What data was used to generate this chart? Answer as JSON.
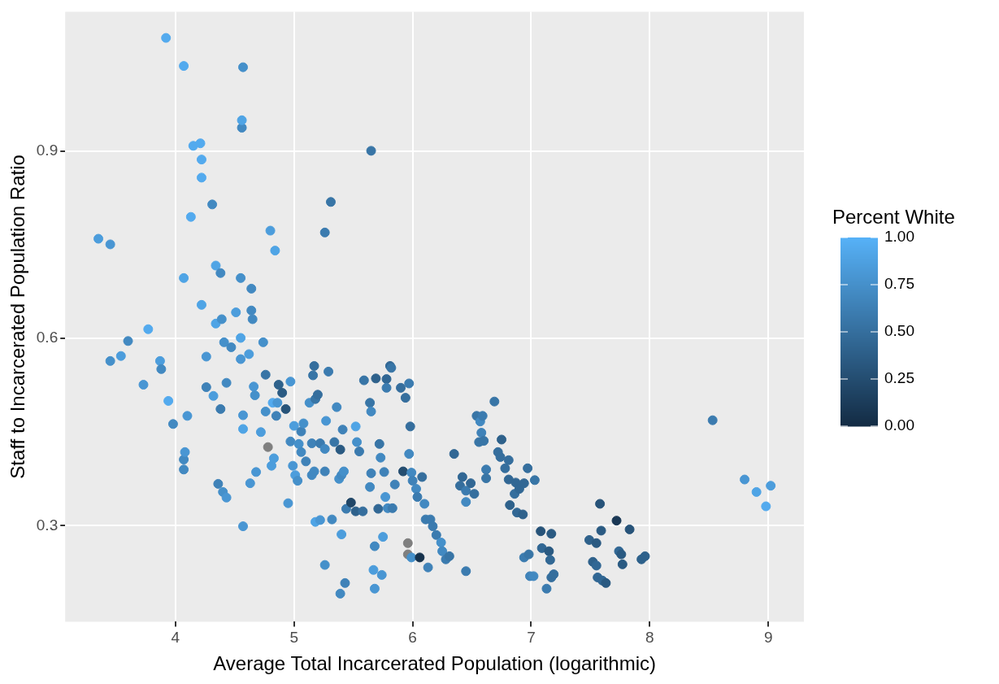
{
  "chart_data": {
    "type": "scatter",
    "xlabel": "Average Total Incarcerated Population (logarithmic)",
    "ylabel": "Staff to Incarcerated Population Ratio",
    "legend_title": "Percent White",
    "grid": true,
    "marker": "circle",
    "xlim": [
      3.07,
      9.3
    ],
    "ylim": [
      0.146,
      1.124
    ],
    "xticks": [
      4,
      5,
      6,
      7,
      8,
      9
    ],
    "yticks": [
      0.3,
      0.6,
      0.9
    ],
    "clim": [
      0,
      1
    ],
    "cticks": [
      {
        "value": 0,
        "label": "0.00"
      },
      {
        "value": 0.25,
        "label": "0.25"
      },
      {
        "value": 0.5,
        "label": "0.50"
      },
      {
        "value": 0.75,
        "label": "0.75"
      },
      {
        "value": 1,
        "label": "1.00"
      }
    ],
    "x": [
      3.35,
      3.45,
      3.45,
      3.54,
      3.6,
      3.73,
      3.77,
      3.87,
      3.88,
      3.94,
      3.92,
      3.98,
      4.07,
      4.07,
      4.07,
      4.08,
      4.07,
      4.1,
      4.15,
      4.21,
      4.22,
      4.22,
      4.13,
      4.31,
      4.22,
      4.26,
      4.26,
      4.32,
      4.34,
      4.38,
      4.34,
      4.39,
      4.41,
      4.36,
      4.4,
      4.43,
      4.38,
      4.43,
      4.47,
      4.51,
      4.55,
      4.55,
      4.56,
      4.56,
      4.57,
      4.55,
      4.57,
      4.57,
      4.57,
      4.64,
      4.64,
      4.65,
      4.62,
      4.63,
      4.66,
      4.67,
      4.68,
      4.72,
      4.74,
      4.76,
      4.76,
      4.8,
      4.84,
      4.78,
      4.82,
      4.81,
      4.83,
      4.85,
      4.86,
      4.87,
      4.9,
      4.93,
      4.95,
      4.97,
      4.97,
      4.99,
      5,
      5.01,
      5.03,
      5.04,
      5.06,
      5.06,
      5.08,
      5.1,
      5.13,
      5.15,
      5.15,
      5.17,
      5.16,
      5.17,
      5.18,
      5.18,
      5.22,
      5.2,
      5.22,
      5.26,
      5.26,
      5.26,
      5.27,
      5.29,
      5.31,
      5.26,
      5.32,
      5.34,
      5.36,
      5.39,
      5.41,
      5.38,
      5.4,
      5.42,
      5.4,
      5.39,
      5.43,
      5.44,
      5.48,
      5.52,
      5.52,
      5.53,
      5.55,
      5.58,
      5.59,
      5.64,
      5.65,
      5.65,
      5.65,
      5.64,
      5.68,
      5.69,
      5.72,
      5.73,
      5.71,
      5.67,
      5.68,
      5.74,
      5.75,
      5.76,
      5.78,
      5.77,
      5.79,
      5.81,
      5.83,
      5.85,
      5.78,
      5.82,
      5.9,
      5.92,
      5.94,
      5.97,
      5.97,
      5.98,
      5.99,
      6,
      5.96,
      5.96,
      5.99,
      6.06,
      6.03,
      6.04,
      6.08,
      6.1,
      6.11,
      6.13,
      6.15,
      6.17,
      6.2,
      6.24,
      6.25,
      6.28,
      6.31,
      6.35,
      6.4,
      6.42,
      6.45,
      6.45,
      6.45,
      6.49,
      6.52,
      6.54,
      6.56,
      6.57,
      6.58,
      6.59,
      6.6,
      6.62,
      6.62,
      6.69,
      6.72,
      6.74,
      6.75,
      6.78,
      6.81,
      6.81,
      6.82,
      6.86,
      6.87,
      6.88,
      6.9,
      6.93,
      6.94,
      6.94,
      6.97,
      6.98,
      6.99,
      7.03,
      7.02,
      7.08,
      7.09,
      7.13,
      7.15,
      7.16,
      7.17,
      7.17,
      7.19,
      7.49,
      7.52,
      7.55,
      7.55,
      7.56,
      7.58,
      7.59,
      7.6,
      7.63,
      7.72,
      7.74,
      7.76,
      7.77,
      7.83,
      7.93,
      7.96,
      8.53,
      8.8,
      8.9,
      8.98,
      9.02
    ],
    "values": [
      0.76,
      0.751,
      0.564,
      0.572,
      0.596,
      0.526,
      0.615,
      0.564,
      0.551,
      0.5,
      1.082,
      0.463,
      1.037,
      0.697,
      0.406,
      0.418,
      0.39,
      0.476,
      0.909,
      0.913,
      0.887,
      0.858,
      0.795,
      0.815,
      0.654,
      0.571,
      0.522,
      0.508,
      0.717,
      0.705,
      0.624,
      0.631,
      0.594,
      0.367,
      0.354,
      0.345,
      0.487,
      0.529,
      0.586,
      0.642,
      0.601,
      0.567,
      0.938,
      0.95,
      1.035,
      0.697,
      0.455,
      0.477,
      0.299,
      0.68,
      0.645,
      0.631,
      0.575,
      0.368,
      0.523,
      0.509,
      0.386,
      0.45,
      0.594,
      0.483,
      0.542,
      0.773,
      0.741,
      0.426,
      0.497,
      0.396,
      0.408,
      0.476,
      0.497,
      0.526,
      0.513,
      0.487,
      0.336,
      0.435,
      0.531,
      0.396,
      0.46,
      0.381,
      0.372,
      0.431,
      0.451,
      0.418,
      0.464,
      0.403,
      0.497,
      0.432,
      0.381,
      0.387,
      0.541,
      0.556,
      0.503,
      0.306,
      0.309,
      0.51,
      0.432,
      0.423,
      0.77,
      0.387,
      0.468,
      0.547,
      0.819,
      0.237,
      0.31,
      0.434,
      0.49,
      0.422,
      0.454,
      0.375,
      0.381,
      0.387,
      0.286,
      0.191,
      0.208,
      0.327,
      0.337,
      0.323,
      0.459,
      0.434,
      0.419,
      0.323,
      0.533,
      0.497,
      0.901,
      0.483,
      0.384,
      0.362,
      0.267,
      0.536,
      0.431,
      0.409,
      0.327,
      0.229,
      0.199,
      0.221,
      0.282,
      0.386,
      0.535,
      0.346,
      0.328,
      0.556,
      0.328,
      0.366,
      0.521,
      0.553,
      0.521,
      0.387,
      0.505,
      0.528,
      0.415,
      0.459,
      0.385,
      0.372,
      0.272,
      0.254,
      0.249,
      0.249,
      0.359,
      0.346,
      0.378,
      0.335,
      0.31,
      0.233,
      0.31,
      0.299,
      0.285,
      0.273,
      0.259,
      0.246,
      0.251,
      0.415,
      0.364,
      0.378,
      0.356,
      0.338,
      0.227,
      0.368,
      0.351,
      0.476,
      0.434,
      0.467,
      0.449,
      0.476,
      0.436,
      0.39,
      0.376,
      0.499,
      0.418,
      0.41,
      0.438,
      0.392,
      0.374,
      0.405,
      0.333,
      0.351,
      0.369,
      0.321,
      0.359,
      0.318,
      0.368,
      0.249,
      0.392,
      0.254,
      0.219,
      0.373,
      0.219,
      0.291,
      0.264,
      0.199,
      0.259,
      0.245,
      0.287,
      0.217,
      0.222,
      0.277,
      0.242,
      0.272,
      0.236,
      0.217,
      0.335,
      0.292,
      0.212,
      0.208,
      0.308,
      0.259,
      0.254,
      0.238,
      0.294,
      0.246,
      0.251,
      0.469,
      0.374,
      0.354,
      0.331,
      0.364
    ],
    "cvalues": [
      0.85,
      0.8,
      0.75,
      0.85,
      0.7,
      0.8,
      0.95,
      0.85,
      0.7,
      0.95,
      0.95,
      0.7,
      0.95,
      0.9,
      0.7,
      0.8,
      0.7,
      0.8,
      0.95,
      0.95,
      0.95,
      0.95,
      0.95,
      0.7,
      0.9,
      0.8,
      0.65,
      0.85,
      0.9,
      0.7,
      0.9,
      0.75,
      0.75,
      0.65,
      0.75,
      0.8,
      0.6,
      0.7,
      0.7,
      0.85,
      0.9,
      0.8,
      0.7,
      0.9,
      0.75,
      0.75,
      0.9,
      0.8,
      0.8,
      0.7,
      0.7,
      0.7,
      0.85,
      0.8,
      0.8,
      0.75,
      0.8,
      0.85,
      0.75,
      0.75,
      0.55,
      0.85,
      0.9,
      null,
      0.95,
      0.85,
      0.85,
      0.65,
      0.8,
      0.4,
      0.35,
      0.3,
      0.8,
      0.7,
      0.8,
      0.8,
      0.85,
      0.85,
      0.75,
      0.75,
      0.65,
      0.7,
      0.75,
      0.65,
      0.75,
      0.65,
      0.7,
      0.7,
      0.55,
      0.5,
      0.55,
      0.9,
      0.8,
      0.5,
      0.6,
      0.7,
      0.6,
      0.65,
      0.8,
      0.6,
      0.55,
      0.75,
      0.7,
      0.55,
      0.7,
      0.35,
      0.65,
      0.75,
      0.7,
      0.75,
      0.85,
      0.7,
      0.65,
      0.6,
      0.2,
      0.4,
      0.9,
      0.75,
      0.6,
      0.5,
      0.55,
      0.55,
      0.55,
      0.7,
      0.65,
      0.7,
      0.7,
      0.4,
      0.55,
      0.7,
      0.45,
      0.85,
      0.8,
      0.8,
      0.85,
      0.65,
      0.45,
      0.8,
      0.7,
      0.45,
      0.6,
      0.65,
      0.6,
      0.55,
      0.5,
      0.25,
      0.5,
      0.6,
      0.7,
      0.5,
      0.7,
      0.65,
      null,
      null,
      0.75,
      0.05,
      0.7,
      0.6,
      0.5,
      0.7,
      0.6,
      0.65,
      0.6,
      0.6,
      0.6,
      0.75,
      0.7,
      0.6,
      0.55,
      0.45,
      0.5,
      0.45,
      0.6,
      0.7,
      0.6,
      0.45,
      0.5,
      0.55,
      0.55,
      0.7,
      0.65,
      0.6,
      0.55,
      0.6,
      0.55,
      0.55,
      0.5,
      0.5,
      0.4,
      0.5,
      0.45,
      0.5,
      0.4,
      0.5,
      0.45,
      0.45,
      0.45,
      0.4,
      0.45,
      0.6,
      0.5,
      0.55,
      0.65,
      0.55,
      0.7,
      0.3,
      0.45,
      0.6,
      0.35,
      0.45,
      0.35,
      0.5,
      0.5,
      0.4,
      0.4,
      0.35,
      0.45,
      0.45,
      0.3,
      0.35,
      0.45,
      0.35,
      0.1,
      0.45,
      0.35,
      0.35,
      0.3,
      0.4,
      0.4,
      0.6,
      0.8,
      0.9,
      0.95,
      0.85
    ]
  }
}
